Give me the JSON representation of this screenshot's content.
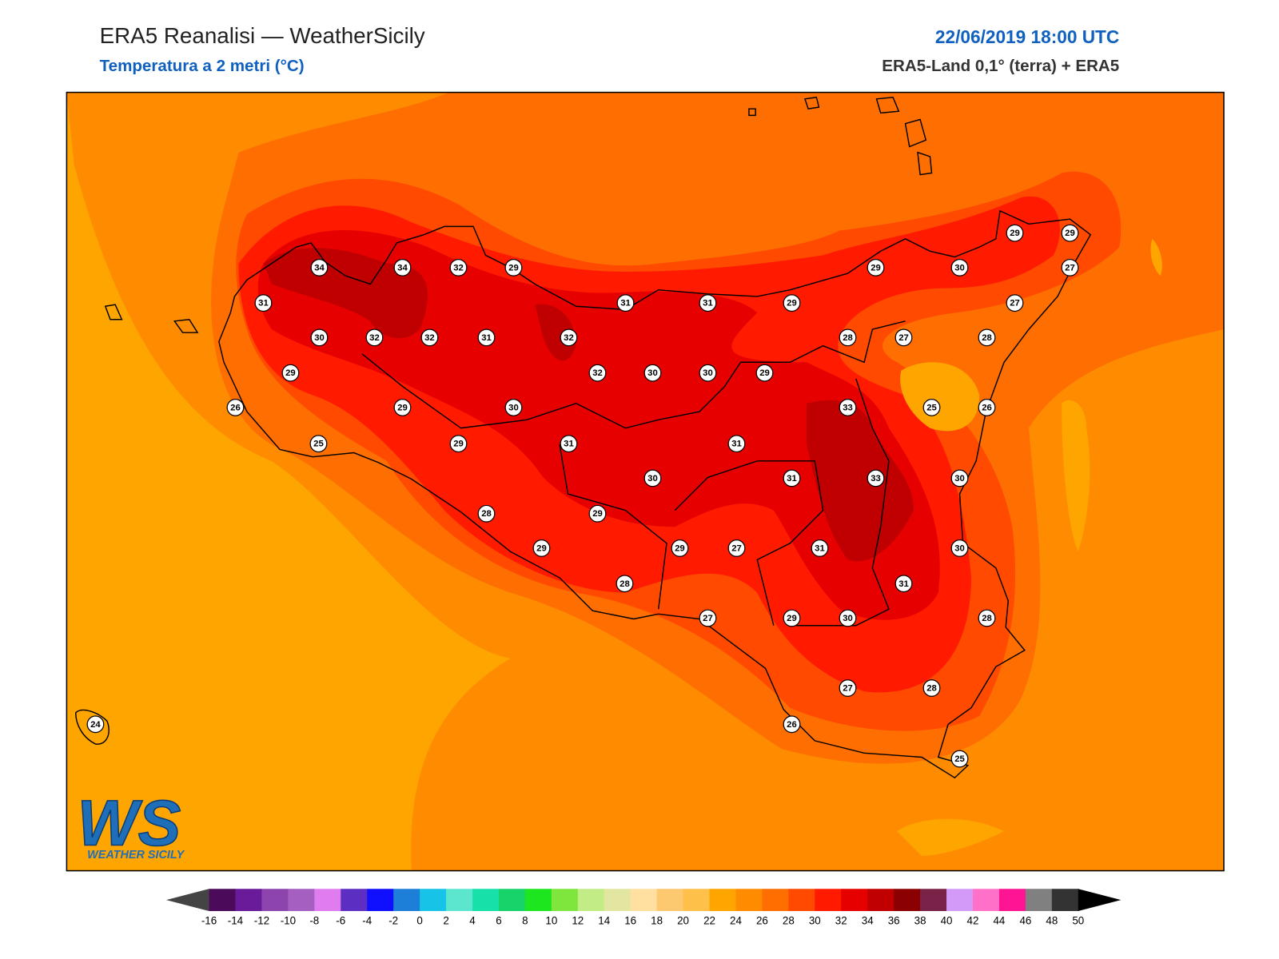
{
  "header": {
    "title": "ERA5 Reanalisi — WeatherSicily",
    "subtitle": "Temperatura a 2 metri (°C)",
    "date": "22/06/2019 18:00 UTC",
    "source": "ERA5-Land 0,1° (terra) + ERA5"
  },
  "stations": {
    "values": [
      34,
      34,
      32,
      29,
      31,
      30,
      32,
      32,
      31,
      32,
      29,
      32,
      30,
      30,
      29,
      26,
      29,
      30,
      25,
      29,
      31,
      31,
      30,
      28,
      29,
      29,
      29,
      27,
      28,
      27,
      29,
      30,
      31,
      31,
      33,
      33,
      25,
      26,
      30,
      30,
      31,
      28,
      27,
      28,
      26,
      25,
      24,
      31,
      31,
      29,
      29,
      30,
      29,
      29,
      27,
      27,
      28,
      27,
      28
    ]
  },
  "colorbar": {
    "labels": [
      -16,
      -14,
      -12,
      -10,
      -8,
      -6,
      -4,
      -2,
      0,
      2,
      4,
      6,
      8,
      10,
      12,
      14,
      16,
      18,
      20,
      22,
      24,
      26,
      28,
      30,
      32,
      34,
      36,
      38,
      40,
      42,
      44,
      46,
      48,
      50
    ],
    "colors": [
      "#4b0a5a",
      "#6a1b9a",
      "#8e44ad",
      "#a55fc1",
      "#e07cf0",
      "#5c2fc2",
      "#1010ff",
      "#1e7fd8",
      "#17c3e6",
      "#5ce6d0",
      "#17e0a8",
      "#17d46a",
      "#1ee61e",
      "#7ee63c",
      "#c2ed86",
      "#e3e6a0",
      "#ffe0a0",
      "#fcc870",
      "#ffc04a",
      "#ffa500",
      "#ff8c00",
      "#ff6e00",
      "#ff4a00",
      "#ff1a00",
      "#e60000",
      "#c00000",
      "#8b0000",
      "#7a2348",
      "#d39bf7",
      "#ff70c8",
      "#ff1493",
      "#808080",
      "#333333"
    ],
    "under_color": "#444444",
    "over_color": "#000000"
  },
  "logo": {
    "mark": "WS",
    "text": "WEATHER SICILY"
  }
}
